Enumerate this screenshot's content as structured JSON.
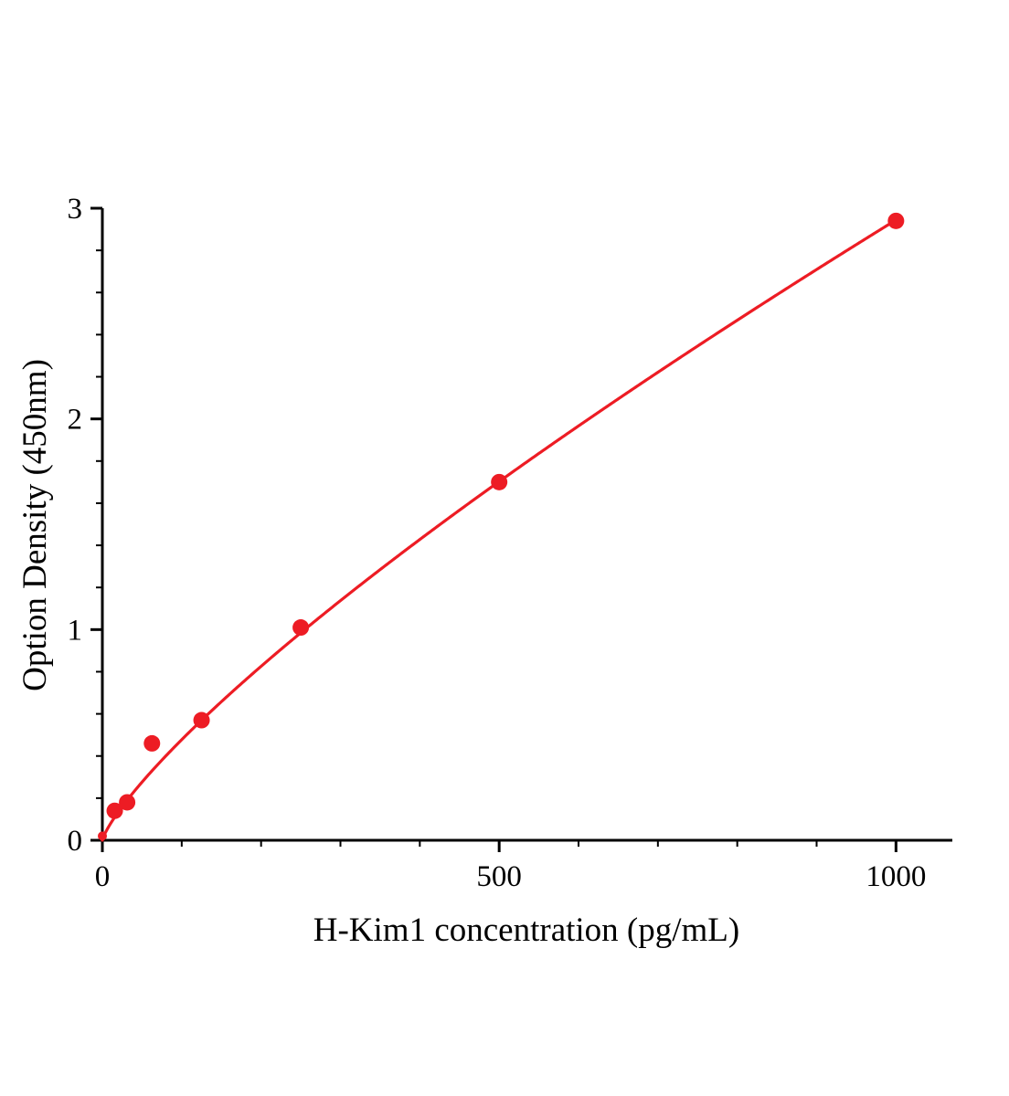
{
  "chart_data": {
    "type": "scatter",
    "title": "",
    "xlabel": "H-Kim1 concentration (pg/mL)",
    "ylabel": "Option Density (450nm)",
    "x": [
      0,
      15.6,
      31.2,
      62.5,
      125,
      250,
      500,
      1000
    ],
    "y": [
      0.02,
      0.14,
      0.18,
      0.46,
      0.57,
      1.01,
      1.7,
      2.94
    ],
    "xlim": [
      0,
      1071
    ],
    "ylim": [
      0,
      3
    ],
    "x_ticks": [
      0,
      500,
      1000
    ],
    "y_ticks": [
      0,
      1,
      2,
      3
    ],
    "x_minor_ticks": [
      100,
      200,
      300,
      400,
      600,
      700,
      800,
      900,
      1000
    ],
    "y_minor_ticks": [
      0.2,
      0.4,
      0.6,
      0.8,
      1.2,
      1.4,
      1.6,
      1.8,
      2.2,
      2.4,
      2.6,
      2.8
    ],
    "fit": {
      "type": "power",
      "a": 0.01256,
      "b": 0.79
    },
    "grid": false,
    "legend": "none",
    "line_color": "#ed1c24",
    "marker_color": "#ed1c24",
    "axis_color": "#000000",
    "marker": "circle"
  }
}
